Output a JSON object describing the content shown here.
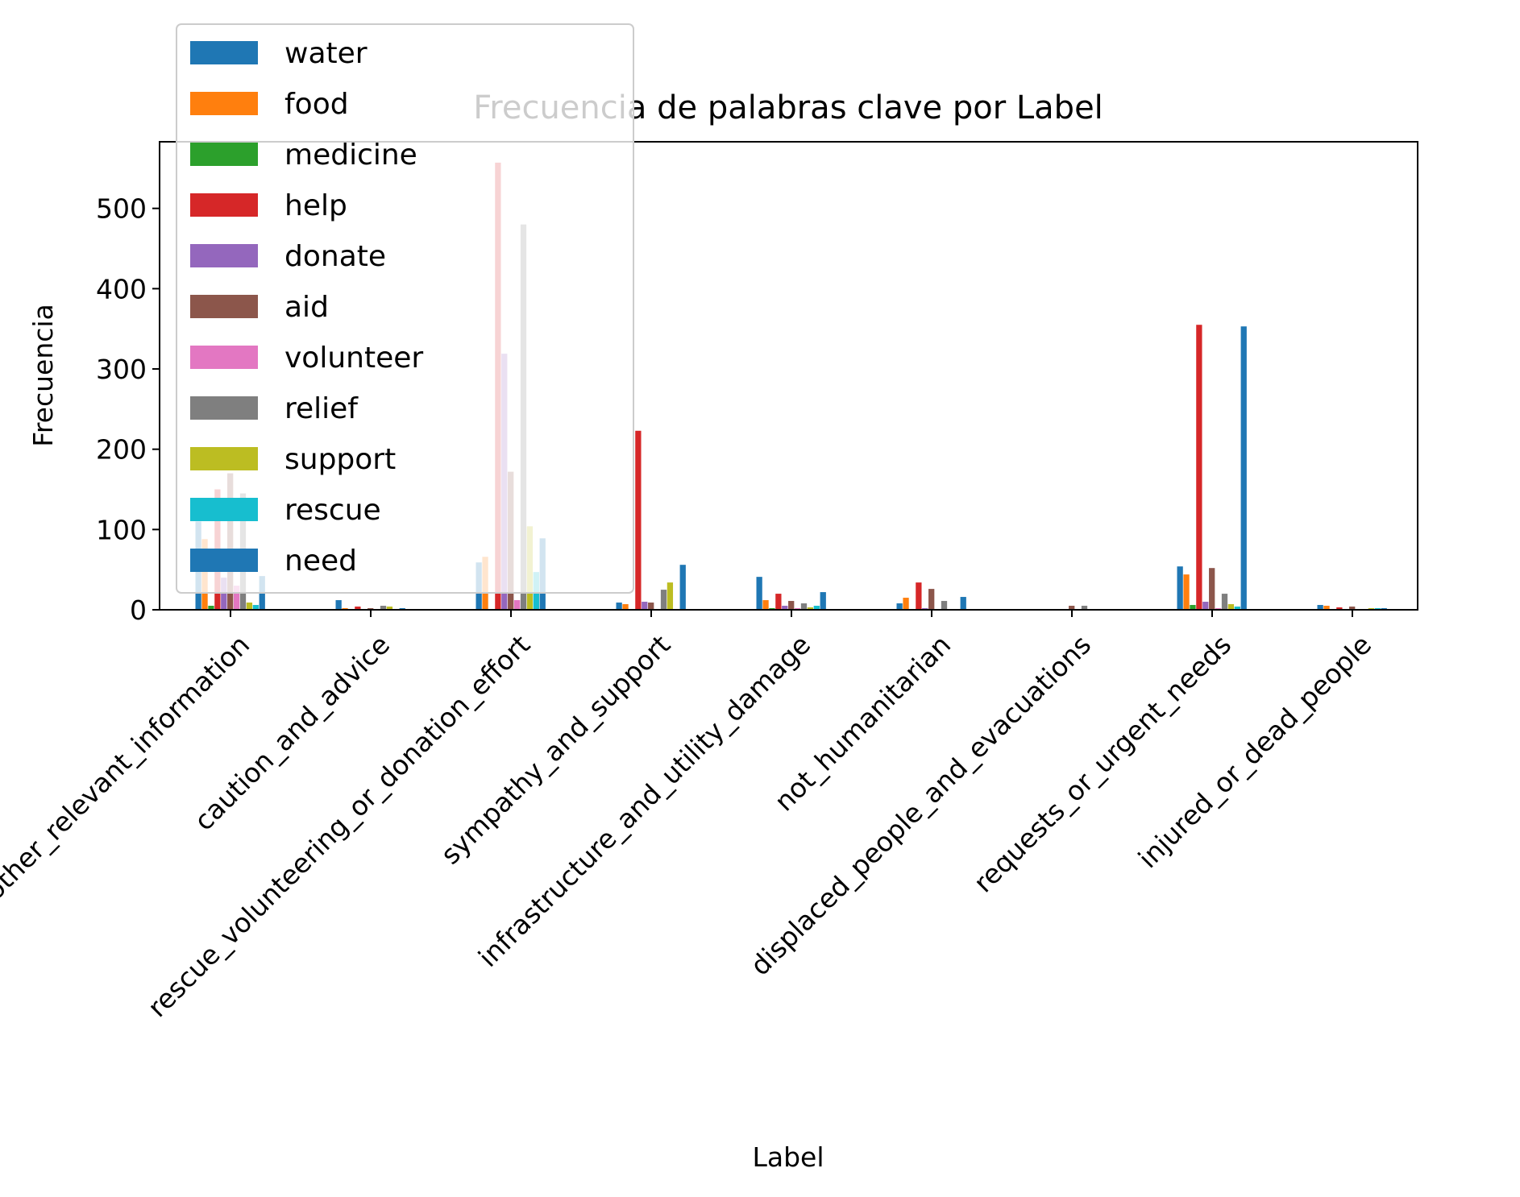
{
  "chart_data": {
    "type": "bar",
    "title": "Frecuencia de palabras clave por Label",
    "xlabel": "Label",
    "ylabel": "Frecuencia",
    "ylim": [
      0,
      583
    ],
    "yticks": [
      0,
      100,
      200,
      300,
      400,
      500
    ],
    "grid": false,
    "legend_placement": "upper-left",
    "categories": [
      "other_relevant_information",
      "caution_and_advice",
      "rescue_volunteering_or_donation_effort",
      "sympathy_and_support",
      "infrastructure_and_utility_damage",
      "not_humanitarian",
      "displaced_people_and_evacuations",
      "requests_or_urgent_needs",
      "injured_or_dead_people"
    ],
    "series": [
      {
        "name": "water",
        "color": "#1f77b4",
        "values": [
          110,
          12,
          59,
          9,
          41,
          8,
          0,
          54,
          6
        ]
      },
      {
        "name": "food",
        "color": "#ff7f0e",
        "values": [
          88,
          2,
          66,
          7,
          12,
          15,
          0,
          44,
          5
        ]
      },
      {
        "name": "medicine",
        "color": "#2ca02c",
        "values": [
          5,
          0,
          1,
          0,
          2,
          1,
          0,
          6,
          0
        ]
      },
      {
        "name": "help",
        "color": "#d62728",
        "values": [
          150,
          4,
          557,
          223,
          20,
          34,
          0,
          355,
          3
        ]
      },
      {
        "name": "donate",
        "color": "#9467bd",
        "values": [
          40,
          1,
          319,
          10,
          5,
          2,
          0,
          10,
          1
        ]
      },
      {
        "name": "aid",
        "color": "#8c564b",
        "values": [
          170,
          2,
          172,
          9,
          11,
          26,
          5,
          52,
          4
        ]
      },
      {
        "name": "volunteer",
        "color": "#e377c2",
        "values": [
          30,
          1,
          12,
          0,
          2,
          0,
          0,
          2,
          0
        ]
      },
      {
        "name": "relief",
        "color": "#7f7f7f",
        "values": [
          145,
          5,
          480,
          25,
          8,
          11,
          5,
          20,
          1
        ]
      },
      {
        "name": "support",
        "color": "#bcbd22",
        "values": [
          9,
          4,
          104,
          34,
          3,
          1,
          0,
          7,
          2
        ]
      },
      {
        "name": "rescue",
        "color": "#17becf",
        "values": [
          6,
          1,
          47,
          0,
          5,
          1,
          0,
          4,
          2
        ]
      },
      {
        "name": "need",
        "color": "#1f77b4",
        "values": [
          42,
          2,
          89,
          56,
          22,
          16,
          0,
          353,
          2
        ]
      }
    ]
  }
}
